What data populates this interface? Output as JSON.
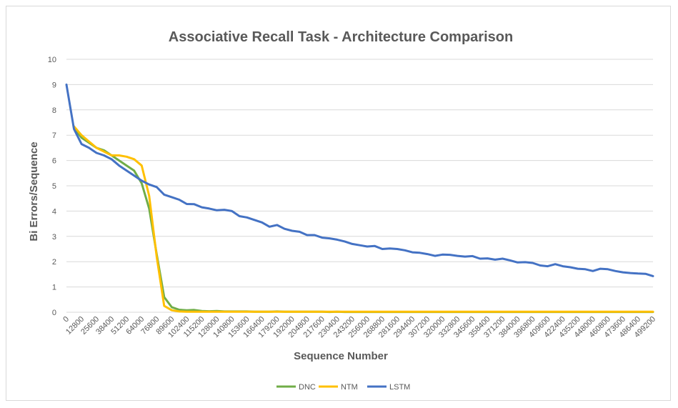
{
  "chart_data": {
    "type": "line",
    "title": "Associative Recall Task - Architecture Comparison",
    "xlabel": "Sequence Number",
    "ylabel": "Bi Errors/Sequence",
    "ylim": [
      0,
      10
    ],
    "yticks": [
      "0",
      "1",
      "2",
      "3",
      "4",
      "5",
      "6",
      "7",
      "8",
      "9",
      "10"
    ],
    "x_step": 6400,
    "x_count": 79,
    "xticks": [
      "0",
      "12800",
      "25600",
      "38400",
      "51200",
      "64000",
      "76800",
      "89600",
      "102400",
      "115200",
      "128000",
      "140800",
      "153600",
      "166400",
      "179200",
      "192000",
      "204800",
      "217600",
      "230400",
      "243200",
      "256000",
      "268800",
      "281600",
      "294400",
      "307200",
      "320000",
      "332800",
      "345600",
      "358400",
      "371200",
      "384000",
      "396800",
      "409600",
      "422400",
      "435200",
      "448000",
      "460800",
      "473600",
      "486400",
      "499200"
    ],
    "grid": true,
    "legend_position": "bottom",
    "series": [
      {
        "name": "DNC",
        "color": "#70ad47",
        "values": [
          null,
          7.3,
          6.9,
          6.7,
          6.5,
          6.4,
          6.2,
          6.0,
          5.8,
          5.6,
          5.1,
          4.1,
          2.3,
          0.6,
          0.2,
          0.1,
          0.08,
          0.09,
          0.05,
          0.04,
          0.05,
          0.03,
          0.03,
          0.03,
          0.03,
          0.02,
          0.02,
          0.02,
          0.03,
          0.02,
          0.02,
          0.02,
          0.02,
          0.02,
          0.02,
          0.01,
          0.02,
          0.01,
          0.01,
          0.01,
          0.01,
          0.01,
          0.01,
          0.01,
          0.01,
          0.01,
          0.01,
          0.01,
          0.01,
          0.01,
          0.01,
          0.01,
          0.01,
          0.01,
          0.01,
          0.01,
          0.01,
          0.01,
          0.01,
          0.01,
          0.01,
          0.01,
          0.01,
          0.01,
          0.01,
          0.01,
          0.01,
          0.01,
          0.01,
          0.01,
          0.01,
          0.01,
          0.01,
          0.01,
          0.01,
          0.01,
          0.01,
          0.01,
          0.01
        ]
      },
      {
        "name": "NTM",
        "color": "#ffc000",
        "values": [
          null,
          7.35,
          7.0,
          6.75,
          6.5,
          6.35,
          6.2,
          6.2,
          6.15,
          6.05,
          5.8,
          4.6,
          2.2,
          0.25,
          0.08,
          0.03,
          0.02,
          0.02,
          0.02,
          0.02,
          0.02,
          0.02,
          0.02,
          0.02,
          0.02,
          0.02,
          0.02,
          0.02,
          0.02,
          0.02,
          0.02,
          0.02,
          0.02,
          0.02,
          0.02,
          0.02,
          0.02,
          0.02,
          0.02,
          0.02,
          0.02,
          0.02,
          0.02,
          0.02,
          0.02,
          0.02,
          0.02,
          0.02,
          0.02,
          0.02,
          0.02,
          0.02,
          0.02,
          0.02,
          0.02,
          0.02,
          0.02,
          0.02,
          0.02,
          0.02,
          0.02,
          0.02,
          0.02,
          0.02,
          0.02,
          0.02,
          0.02,
          0.02,
          0.02,
          0.02,
          0.02,
          0.02,
          0.02,
          0.02,
          0.02,
          0.02,
          0.02,
          0.02,
          0.02
        ]
      },
      {
        "name": "LSTM",
        "color": "#4472c4",
        "values": [
          9.0,
          7.25,
          6.65,
          6.5,
          6.3,
          6.2,
          6.05,
          5.8,
          5.6,
          5.4,
          5.2,
          5.05,
          4.95,
          4.65,
          4.55,
          4.45,
          4.28,
          4.27,
          4.15,
          4.1,
          4.03,
          4.05,
          4.0,
          3.8,
          3.75,
          3.65,
          3.55,
          3.38,
          3.45,
          3.3,
          3.22,
          3.18,
          3.05,
          3.05,
          2.95,
          2.92,
          2.87,
          2.8,
          2.7,
          2.65,
          2.6,
          2.62,
          2.5,
          2.52,
          2.5,
          2.45,
          2.37,
          2.35,
          2.3,
          2.23,
          2.28,
          2.27,
          2.23,
          2.2,
          2.22,
          2.12,
          2.13,
          2.08,
          2.12,
          2.05,
          1.97,
          1.98,
          1.95,
          1.85,
          1.82,
          1.9,
          1.82,
          1.78,
          1.72,
          1.7,
          1.63,
          1.72,
          1.7,
          1.63,
          1.58,
          1.55,
          1.53,
          1.52,
          1.43
        ]
      }
    ]
  }
}
